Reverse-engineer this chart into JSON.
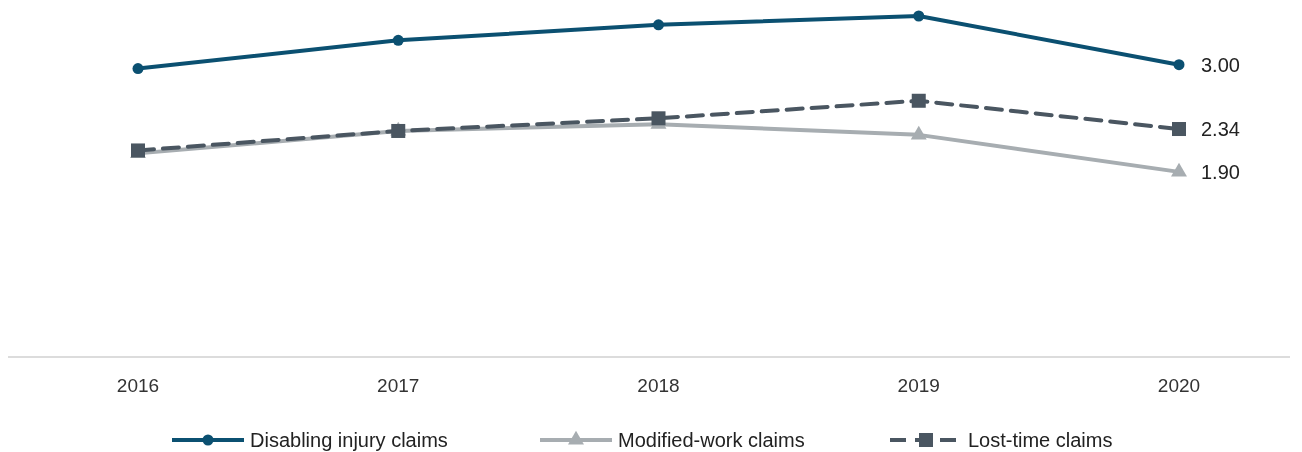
{
  "chart_data": {
    "type": "line",
    "categories": [
      "2016",
      "2017",
      "2018",
      "2019",
      "2020"
    ],
    "tick_labels": "x",
    "legend": "bottom",
    "series": [
      {
        "name": "Disabling injury claims",
        "color": "#0b5071",
        "marker": "circle",
        "line_style": "solid",
        "values": [
          2.96,
          3.25,
          3.41,
          3.5,
          3.0
        ],
        "value_labels": [
          null,
          null,
          null,
          null,
          "3.00"
        ]
      },
      {
        "name": "Modified-work claims",
        "color": "#a7adb1",
        "marker": "triangle",
        "line_style": "solid",
        "values": [
          2.09,
          2.32,
          2.39,
          2.28,
          1.9
        ],
        "value_labels": [
          null,
          null,
          null,
          null,
          "1.90"
        ]
      },
      {
        "name": "Lost-time claims",
        "color": "#4a5661",
        "marker": "square",
        "line_style": "dashed",
        "values": [
          2.12,
          2.32,
          2.45,
          2.63,
          2.34
        ],
        "value_labels": [
          null,
          null,
          null,
          null,
          "2.34"
        ]
      }
    ]
  }
}
